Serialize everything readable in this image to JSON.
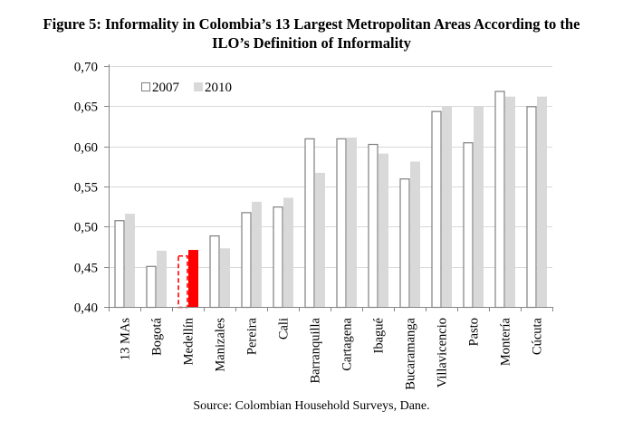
{
  "title_line1": "Figure 5: Informality in Colombia’s 13 Largest Metropolitan Areas According to the",
  "title_line2": "ILO’s Definition of Informality",
  "source": "Source: Colombian Household Surveys, Dane.",
  "colors": {
    "bar_2007_fill": "#ffffff",
    "bar_2007_stroke": "#7f7f7f",
    "bar_2010_fill": "#d9d9d9",
    "highlight": "#ff0000",
    "grid": "#d9d9d9",
    "axis": "#868686"
  },
  "chart_data": {
    "type": "bar",
    "title": "Figure 5: Informality in Colombia’s 13 Largest Metropolitan Areas According to the ILO’s Definition of Informality",
    "xlabel": "",
    "ylabel": "",
    "ylim": [
      0.4,
      0.7
    ],
    "yticks": [
      "0,40",
      "0,45",
      "0,50",
      "0,55",
      "0,60",
      "0,65",
      "0,70"
    ],
    "ytick_values": [
      0.4,
      0.45,
      0.5,
      0.55,
      0.6,
      0.65,
      0.7
    ],
    "grid": true,
    "legend_position": "top-left",
    "highlighted_category": "Medellín",
    "categories": [
      "13 MAs",
      "Bogotá",
      "Medellín",
      "Manizales",
      "Pereira",
      "Cali",
      "Barranquilla",
      "Cartagena",
      "Ibagué",
      "Bucaramanga",
      "Villavicencio",
      "Pasto",
      "Montería",
      "Cúcuta"
    ],
    "series": [
      {
        "name": "2007",
        "values": [
          0.508,
          0.451,
          0.464,
          0.489,
          0.518,
          0.525,
          0.61,
          0.61,
          0.603,
          0.56,
          0.644,
          0.605,
          0.669,
          0.65
        ]
      },
      {
        "name": "2010",
        "values": [
          0.516,
          0.47,
          0.471,
          0.473,
          0.531,
          0.536,
          0.567,
          0.611,
          0.591,
          0.581,
          0.65,
          0.65,
          0.662,
          0.662
        ]
      }
    ]
  }
}
